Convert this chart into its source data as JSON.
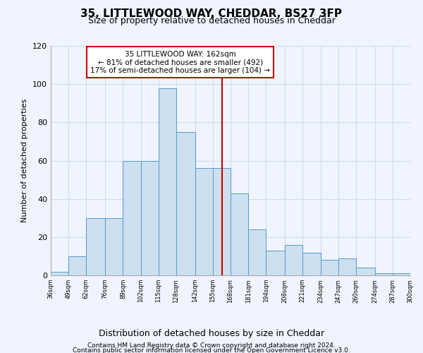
{
  "title": "35, LITTLEWOOD WAY, CHEDDAR, BS27 3FP",
  "subtitle": "Size of property relative to detached houses in Cheddar",
  "xlabel": "Distribution of detached houses by size in Cheddar",
  "ylabel": "Number of detached properties",
  "footer1": "Contains HM Land Registry data © Crown copyright and database right 2024.",
  "footer2": "Contains public sector information licensed under the Open Government Licence v3.0.",
  "annotation_title": "35 LITTLEWOOD WAY: 162sqm",
  "annotation_line1": "← 81% of detached houses are smaller (492)",
  "annotation_line2": "17% of semi-detached houses are larger (104) →",
  "property_line_x": 162,
  "bar_edges": [
    36,
    49,
    62,
    76,
    89,
    102,
    115,
    128,
    142,
    155,
    168,
    181,
    194,
    208,
    221,
    234,
    247,
    260,
    274,
    287,
    300
  ],
  "bar_heights": [
    2,
    10,
    30,
    30,
    60,
    60,
    98,
    75,
    56,
    56,
    43,
    24,
    13,
    16,
    12,
    8,
    9,
    4,
    1,
    1
  ],
  "bar_color": "#cce0f0",
  "bar_edge_color": "#5599cc",
  "property_line_color": "#cc0000",
  "annotation_box_color": "#cc0000",
  "grid_color": "#ccddee",
  "background_color": "#f0f4ff",
  "ylim": [
    0,
    120
  ],
  "xlim": [
    36,
    300
  ]
}
